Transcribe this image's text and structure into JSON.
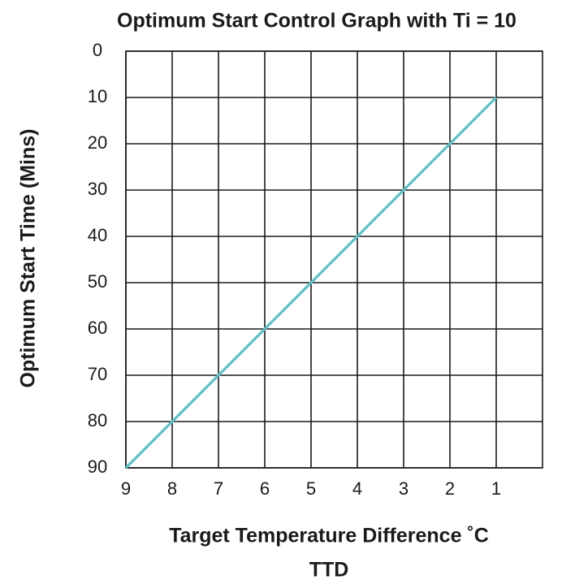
{
  "chart_data": {
    "type": "line",
    "title": "Optimum Start Control Graph with Ti = 10",
    "xlabel": [
      "Target Temperature Difference ˚C",
      "TTD"
    ],
    "ylabel": "Optimum Start Time (Mins)",
    "x": [
      9,
      8,
      7,
      6,
      5,
      4,
      3,
      2,
      1
    ],
    "series": [
      {
        "name": "Ti = 10",
        "color": "#5cc2c0",
        "values": [
          90,
          80,
          70,
          60,
          50,
          40,
          30,
          20,
          10
        ]
      }
    ],
    "xlim": [
      9,
      0
    ],
    "xticks": [
      9,
      8,
      7,
      6,
      5,
      4,
      3,
      2,
      1
    ],
    "ylim": [
      90,
      0
    ],
    "yticks": [
      0,
      10,
      20,
      30,
      40,
      50,
      60,
      70,
      80,
      90
    ],
    "grid": true,
    "legend": false
  }
}
